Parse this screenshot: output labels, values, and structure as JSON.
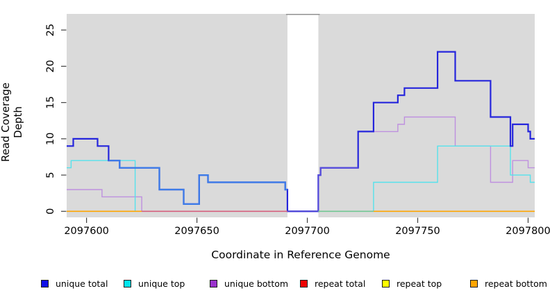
{
  "chart_data": {
    "type": "line",
    "subtype": "step-coverage-plot",
    "title": "",
    "xlabel": "Coordinate in Reference Genome",
    "ylabel": "Read Coverage Depth",
    "xlim": [
      2097591,
      2097803
    ],
    "ylim": [
      0,
      27
    ],
    "x_ticks": [
      2097600,
      2097650,
      2097700,
      2097750,
      2097800
    ],
    "y_ticks": [
      0,
      5,
      10,
      15,
      20,
      25
    ],
    "grid": false,
    "plot_bg": "#DADADA",
    "masked_region": {
      "from": 2097691,
      "to": 2097705,
      "color": "#FFFFFF",
      "top_line_color": "#909090"
    },
    "series": [
      {
        "name": "unique total",
        "color": "#2525DC",
        "width": 2.2,
        "hidden": false,
        "steps": [
          [
            2097591,
            9
          ],
          [
            2097594,
            10
          ],
          [
            2097605,
            9
          ],
          [
            2097610,
            7
          ],
          [
            2097615,
            6
          ],
          [
            2097633,
            3
          ],
          [
            2097644,
            1
          ],
          [
            2097651,
            5
          ],
          [
            2097655,
            4
          ],
          [
            2097690,
            3
          ],
          [
            2097691,
            0
          ],
          [
            2097705,
            5
          ],
          [
            2097706,
            6
          ],
          [
            2097723,
            11
          ],
          [
            2097730,
            15
          ],
          [
            2097741,
            16
          ],
          [
            2097744,
            17
          ],
          [
            2097759,
            22
          ],
          [
            2097767,
            18
          ],
          [
            2097783,
            13
          ],
          [
            2097792,
            9
          ],
          [
            2097793,
            12
          ],
          [
            2097800,
            11
          ],
          [
            2097801,
            10
          ]
        ],
        "color_overrides": [
          {
            "from": 2097610,
            "to": 2097691,
            "color": "#3D7CE8"
          },
          {
            "from": 2097691,
            "to": 2097723,
            "color": "#564CDB"
          }
        ]
      },
      {
        "name": "unique top",
        "color": "#55E2EC",
        "width": 1.4,
        "hidden": false,
        "steps": [
          [
            2097591,
            6
          ],
          [
            2097593,
            7
          ],
          [
            2097622,
            0
          ],
          [
            2097730,
            4
          ],
          [
            2097759,
            9
          ],
          [
            2097792,
            5
          ],
          [
            2097801,
            4
          ]
        ],
        "color_overrides": []
      },
      {
        "name": "unique bottom",
        "color": "#BE90DF",
        "width": 1.4,
        "hidden": false,
        "steps": [
          [
            2097591,
            3
          ],
          [
            2097607,
            2
          ],
          [
            2097625,
            0
          ],
          [
            2097705,
            5
          ],
          [
            2097706,
            6
          ],
          [
            2097723,
            11
          ],
          [
            2097741,
            12
          ],
          [
            2097744,
            13
          ],
          [
            2097767,
            9
          ],
          [
            2097783,
            4
          ],
          [
            2097793,
            7
          ],
          [
            2097800,
            6
          ]
        ],
        "color_overrides": []
      },
      {
        "name": "repeat total",
        "color": "#EE0000",
        "width": 1.4,
        "hidden": true,
        "steps": [
          [
            2097591,
            0
          ]
        ],
        "color_overrides": []
      },
      {
        "name": "repeat top",
        "color": "#FFFF00",
        "width": 1.4,
        "hidden": true,
        "steps": [
          [
            2097591,
            0
          ]
        ],
        "color_overrides": []
      },
      {
        "name": "repeat bottom",
        "color": "#FFA500",
        "width": 1.4,
        "hidden": true,
        "steps": [
          [
            2097591,
            0
          ]
        ],
        "color_overrides": []
      }
    ],
    "baseline_segments": [
      {
        "from": 2097591,
        "to": 2097625,
        "color": "#FFA500"
      },
      {
        "from": 2097625,
        "to": 2097691,
        "color": "#D5607E"
      },
      {
        "from": 2097691,
        "to": 2097705,
        "color": "#4B44D6"
      },
      {
        "from": 2097705,
        "to": 2097730,
        "color": "#72C793"
      },
      {
        "from": 2097730,
        "to": 2097803,
        "color": "#FFA500"
      }
    ],
    "legend": {
      "position": "bottom",
      "items": [
        {
          "label": "unique total",
          "fill": "#0F0FE8"
        },
        {
          "label": "unique top",
          "fill": "#00E5EE"
        },
        {
          "label": "unique bottom",
          "fill": "#9A32CD"
        },
        {
          "label": "repeat total",
          "fill": "#EE0000"
        },
        {
          "label": "repeat top",
          "fill": "#FFFF00"
        },
        {
          "label": "repeat bottom",
          "fill": "#FFA500"
        }
      ]
    }
  }
}
